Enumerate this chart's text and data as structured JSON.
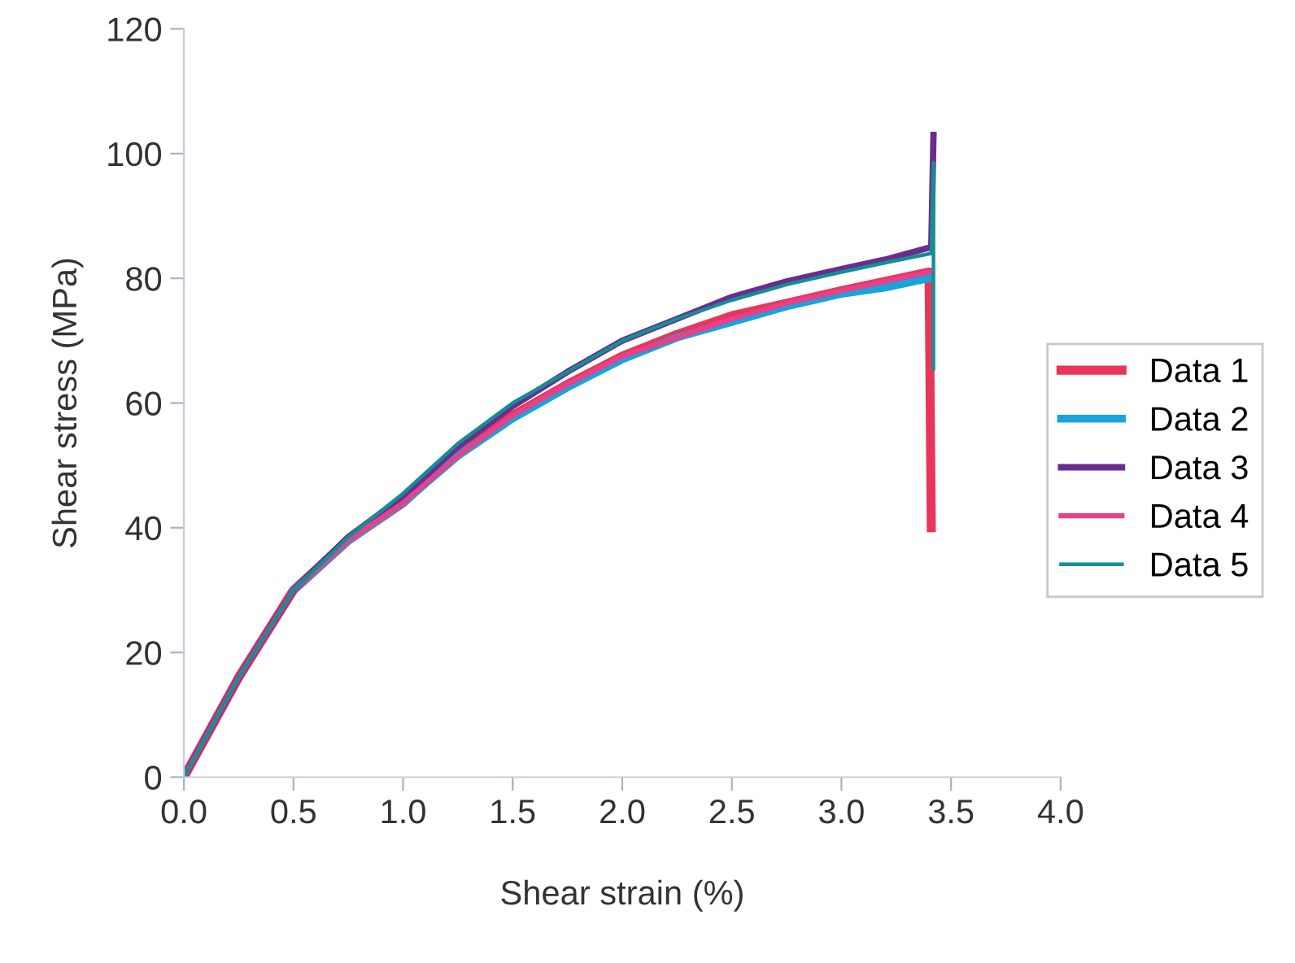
{
  "chart_data": {
    "type": "line",
    "xlabel": "Shear strain (%)",
    "ylabel": "Shear stress (MPa)",
    "xlim": [
      0,
      4
    ],
    "ylim": [
      0,
      120
    ],
    "xticks": [
      {
        "value": 0,
        "label": "0.0"
      },
      {
        "value": 0.5,
        "label": "0.5"
      },
      {
        "value": 1,
        "label": "1.0"
      },
      {
        "value": 1.5,
        "label": "1.5"
      },
      {
        "value": 2,
        "label": "2.0"
      },
      {
        "value": 2.5,
        "label": "2.5"
      },
      {
        "value": 3,
        "label": "3.0"
      },
      {
        "value": 3.5,
        "label": "3.5"
      },
      {
        "value": 4,
        "label": "4.0"
      }
    ],
    "yticks": [
      0,
      20,
      40,
      60,
      80,
      100,
      120
    ],
    "grid": false,
    "legend": "right",
    "marker": "none",
    "line_style": "solid",
    "series": [
      {
        "name": "Data 1",
        "color": "#e8365a",
        "x": [
          0,
          0.25,
          0.5,
          0.75,
          1.0,
          1.25,
          1.5,
          1.75,
          2.0,
          2.25,
          2.5,
          2.75,
          3.0,
          3.2,
          3.4,
          3.41
        ],
        "values": [
          0,
          16,
          30,
          38,
          44,
          52,
          58,
          63,
          67.5,
          71,
          74,
          76,
          78,
          79.5,
          81,
          40
        ]
      },
      {
        "name": "Data 2",
        "color": "#1aa3d8",
        "x": [
          0.5,
          0.75,
          1.0,
          1.25,
          1.5,
          1.75,
          2.0,
          2.25,
          2.5,
          2.75,
          3.0,
          3.2,
          3.4
        ],
        "values": [
          30,
          38,
          44,
          51.5,
          57.5,
          62.5,
          67,
          70.5,
          73,
          75.5,
          77.5,
          78.5,
          80
        ]
      },
      {
        "name": "Data 3",
        "color": "#6a2d8f",
        "x": [
          0,
          0.25,
          0.5,
          0.75,
          1.0,
          1.25,
          1.5,
          1.75,
          2.0,
          2.25,
          2.5,
          2.75,
          3.0,
          3.2,
          3.41,
          3.42
        ],
        "values": [
          0,
          16,
          30,
          38.5,
          45,
          53,
          59.5,
          65,
          70,
          73.5,
          77,
          79.5,
          81.5,
          83,
          85,
          103
        ]
      },
      {
        "name": "Data 4",
        "color": "#e8408a",
        "x": [
          0,
          0.25,
          0.5,
          0.75,
          1.0,
          1.25,
          1.5,
          1.75,
          2.0,
          2.25,
          2.5,
          2.75,
          3.0,
          3.2,
          3.4
        ],
        "values": [
          0,
          16,
          30,
          38,
          44,
          51.5,
          58,
          63,
          67.5,
          70.5,
          73.5,
          76,
          78,
          79.5,
          81
        ]
      },
      {
        "name": "Data 5",
        "color": "#138f94",
        "x": [
          0,
          0.25,
          0.5,
          0.75,
          1.0,
          1.25,
          1.5,
          1.75,
          2.0,
          2.25,
          2.5,
          2.75,
          3.0,
          3.2,
          3.41,
          3.42,
          3.42
        ],
        "values": [
          0,
          16,
          30,
          38.5,
          45.5,
          53.5,
          60,
          65,
          70,
          73.5,
          76.5,
          79,
          81,
          82.5,
          84,
          98.5,
          65.5
        ]
      }
    ]
  }
}
